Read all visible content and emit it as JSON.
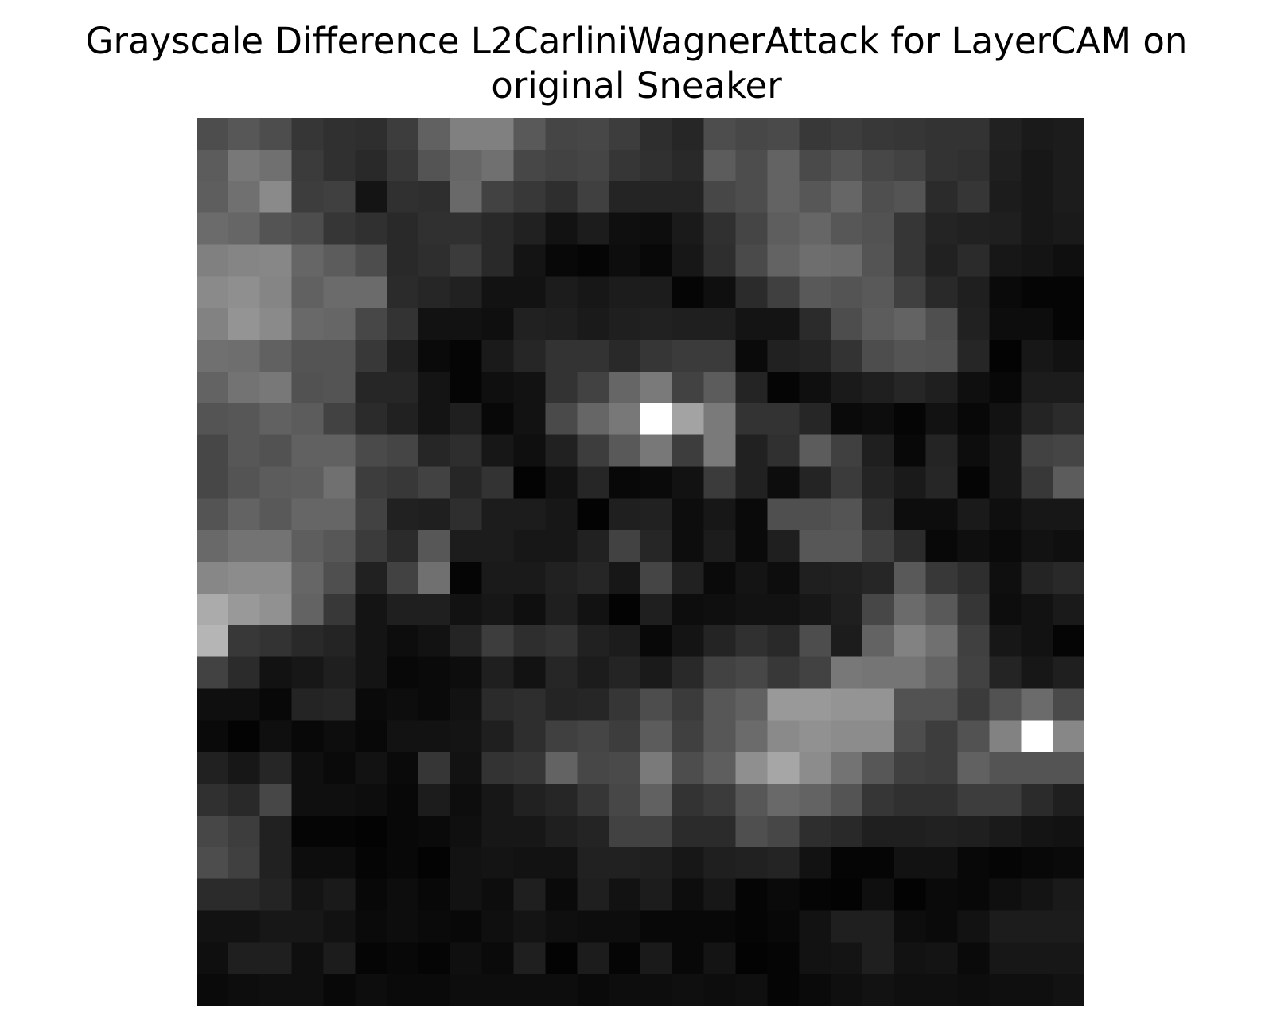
{
  "chart_data": {
    "type": "heatmap",
    "title_lines": [
      "Grayscale Difference L2CarliniWagnerAttack for LayerCAM on",
      "original Sneaker"
    ],
    "colormap": "gray",
    "axes_visible": false,
    "grid": false,
    "rows": 28,
    "cols": 28,
    "vmin": 0,
    "vmax": 1,
    "values": [
      [
        0.3,
        0.34,
        0.3,
        0.21,
        0.19,
        0.18,
        0.24,
        0.38,
        0.5,
        0.5,
        0.35,
        0.27,
        0.28,
        0.24,
        0.18,
        0.15,
        0.3,
        0.28,
        0.29,
        0.22,
        0.24,
        0.22,
        0.21,
        0.2,
        0.2,
        0.13,
        0.1,
        0.11
      ],
      [
        0.36,
        0.47,
        0.44,
        0.23,
        0.19,
        0.16,
        0.22,
        0.33,
        0.4,
        0.44,
        0.28,
        0.26,
        0.27,
        0.21,
        0.19,
        0.16,
        0.36,
        0.3,
        0.39,
        0.29,
        0.33,
        0.28,
        0.26,
        0.2,
        0.19,
        0.12,
        0.09,
        0.11
      ],
      [
        0.37,
        0.44,
        0.54,
        0.24,
        0.25,
        0.08,
        0.19,
        0.18,
        0.41,
        0.26,
        0.22,
        0.18,
        0.25,
        0.14,
        0.14,
        0.14,
        0.28,
        0.3,
        0.39,
        0.34,
        0.4,
        0.31,
        0.33,
        0.17,
        0.21,
        0.11,
        0.09,
        0.11
      ],
      [
        0.42,
        0.4,
        0.33,
        0.3,
        0.21,
        0.19,
        0.16,
        0.19,
        0.19,
        0.16,
        0.13,
        0.07,
        0.11,
        0.06,
        0.05,
        0.1,
        0.19,
        0.27,
        0.37,
        0.4,
        0.34,
        0.32,
        0.21,
        0.14,
        0.13,
        0.12,
        0.09,
        0.1
      ],
      [
        0.5,
        0.52,
        0.53,
        0.4,
        0.36,
        0.3,
        0.16,
        0.18,
        0.23,
        0.16,
        0.08,
        0.03,
        0.02,
        0.05,
        0.03,
        0.09,
        0.18,
        0.29,
        0.39,
        0.43,
        0.42,
        0.33,
        0.21,
        0.13,
        0.17,
        0.09,
        0.08,
        0.06
      ],
      [
        0.54,
        0.56,
        0.52,
        0.38,
        0.42,
        0.42,
        0.17,
        0.15,
        0.13,
        0.07,
        0.07,
        0.11,
        0.09,
        0.11,
        0.11,
        0.02,
        0.06,
        0.17,
        0.25,
        0.35,
        0.33,
        0.35,
        0.25,
        0.16,
        0.12,
        0.04,
        0.02,
        0.02
      ],
      [
        0.51,
        0.58,
        0.54,
        0.41,
        0.4,
        0.28,
        0.2,
        0.07,
        0.07,
        0.06,
        0.13,
        0.12,
        0.1,
        0.12,
        0.13,
        0.12,
        0.12,
        0.08,
        0.08,
        0.17,
        0.3,
        0.36,
        0.39,
        0.31,
        0.13,
        0.05,
        0.05,
        0.02
      ],
      [
        0.44,
        0.43,
        0.38,
        0.33,
        0.33,
        0.22,
        0.13,
        0.04,
        0.02,
        0.1,
        0.15,
        0.2,
        0.2,
        0.16,
        0.21,
        0.23,
        0.23,
        0.04,
        0.13,
        0.14,
        0.2,
        0.3,
        0.33,
        0.32,
        0.15,
        0.01,
        0.09,
        0.07
      ],
      [
        0.39,
        0.45,
        0.47,
        0.32,
        0.33,
        0.15,
        0.15,
        0.08,
        0.02,
        0.06,
        0.07,
        0.2,
        0.26,
        0.4,
        0.48,
        0.26,
        0.36,
        0.14,
        0.02,
        0.06,
        0.1,
        0.12,
        0.15,
        0.12,
        0.06,
        0.03,
        0.11,
        0.11
      ],
      [
        0.33,
        0.34,
        0.38,
        0.36,
        0.26,
        0.17,
        0.13,
        0.08,
        0.12,
        0.03,
        0.07,
        0.29,
        0.4,
        0.47,
        1.0,
        0.64,
        0.48,
        0.2,
        0.2,
        0.15,
        0.04,
        0.05,
        0.02,
        0.07,
        0.03,
        0.07,
        0.14,
        0.17
      ],
      [
        0.28,
        0.34,
        0.32,
        0.38,
        0.38,
        0.29,
        0.27,
        0.15,
        0.18,
        0.09,
        0.06,
        0.13,
        0.24,
        0.35,
        0.47,
        0.24,
        0.48,
        0.13,
        0.19,
        0.36,
        0.25,
        0.12,
        0.03,
        0.14,
        0.05,
        0.09,
        0.26,
        0.27
      ],
      [
        0.28,
        0.33,
        0.36,
        0.37,
        0.44,
        0.24,
        0.22,
        0.26,
        0.15,
        0.2,
        0.01,
        0.07,
        0.15,
        0.03,
        0.04,
        0.07,
        0.23,
        0.13,
        0.05,
        0.14,
        0.23,
        0.14,
        0.1,
        0.15,
        0.02,
        0.09,
        0.22,
        0.36
      ],
      [
        0.33,
        0.39,
        0.35,
        0.4,
        0.4,
        0.26,
        0.13,
        0.12,
        0.18,
        0.11,
        0.11,
        0.09,
        0.01,
        0.12,
        0.13,
        0.05,
        0.09,
        0.04,
        0.31,
        0.31,
        0.33,
        0.18,
        0.05,
        0.05,
        0.1,
        0.06,
        0.09,
        0.09
      ],
      [
        0.41,
        0.45,
        0.45,
        0.37,
        0.34,
        0.23,
        0.17,
        0.34,
        0.11,
        0.11,
        0.09,
        0.09,
        0.13,
        0.26,
        0.15,
        0.05,
        0.11,
        0.04,
        0.12,
        0.34,
        0.34,
        0.25,
        0.17,
        0.03,
        0.06,
        0.04,
        0.07,
        0.06
      ],
      [
        0.53,
        0.55,
        0.55,
        0.4,
        0.31,
        0.13,
        0.26,
        0.44,
        0.02,
        0.1,
        0.1,
        0.13,
        0.15,
        0.09,
        0.27,
        0.13,
        0.04,
        0.08,
        0.05,
        0.12,
        0.13,
        0.15,
        0.35,
        0.22,
        0.18,
        0.06,
        0.14,
        0.16
      ],
      [
        0.67,
        0.6,
        0.57,
        0.39,
        0.22,
        0.08,
        0.12,
        0.12,
        0.07,
        0.09,
        0.06,
        0.12,
        0.07,
        0.01,
        0.12,
        0.05,
        0.06,
        0.07,
        0.07,
        0.09,
        0.12,
        0.28,
        0.42,
        0.35,
        0.21,
        0.05,
        0.07,
        0.1
      ],
      [
        0.71,
        0.22,
        0.2,
        0.16,
        0.14,
        0.08,
        0.05,
        0.07,
        0.14,
        0.24,
        0.18,
        0.2,
        0.13,
        0.11,
        0.03,
        0.08,
        0.14,
        0.19,
        0.16,
        0.3,
        0.11,
        0.39,
        0.51,
        0.44,
        0.25,
        0.09,
        0.07,
        0.02
      ],
      [
        0.26,
        0.17,
        0.07,
        0.09,
        0.12,
        0.08,
        0.03,
        0.04,
        0.05,
        0.12,
        0.07,
        0.15,
        0.11,
        0.14,
        0.1,
        0.16,
        0.26,
        0.28,
        0.22,
        0.26,
        0.47,
        0.46,
        0.46,
        0.39,
        0.26,
        0.14,
        0.09,
        0.12
      ],
      [
        0.06,
        0.06,
        0.03,
        0.14,
        0.15,
        0.04,
        0.05,
        0.04,
        0.07,
        0.17,
        0.18,
        0.14,
        0.15,
        0.21,
        0.3,
        0.23,
        0.34,
        0.38,
        0.6,
        0.6,
        0.58,
        0.58,
        0.32,
        0.32,
        0.23,
        0.32,
        0.42,
        0.29
      ],
      [
        0.04,
        0.01,
        0.06,
        0.03,
        0.05,
        0.03,
        0.07,
        0.07,
        0.08,
        0.12,
        0.18,
        0.25,
        0.27,
        0.24,
        0.36,
        0.25,
        0.34,
        0.42,
        0.54,
        0.57,
        0.55,
        0.55,
        0.3,
        0.24,
        0.32,
        0.51,
        1.0,
        0.53
      ],
      [
        0.13,
        0.09,
        0.15,
        0.06,
        0.04,
        0.07,
        0.04,
        0.21,
        0.07,
        0.2,
        0.21,
        0.39,
        0.28,
        0.29,
        0.48,
        0.3,
        0.37,
        0.56,
        0.65,
        0.55,
        0.45,
        0.34,
        0.25,
        0.24,
        0.38,
        0.33,
        0.33,
        0.33
      ],
      [
        0.19,
        0.16,
        0.28,
        0.06,
        0.06,
        0.05,
        0.03,
        0.11,
        0.05,
        0.09,
        0.13,
        0.15,
        0.21,
        0.28,
        0.38,
        0.2,
        0.23,
        0.34,
        0.41,
        0.39,
        0.33,
        0.21,
        0.19,
        0.19,
        0.24,
        0.24,
        0.17,
        0.12
      ],
      [
        0.28,
        0.24,
        0.13,
        0.02,
        0.02,
        0.01,
        0.03,
        0.04,
        0.06,
        0.09,
        0.09,
        0.12,
        0.14,
        0.26,
        0.26,
        0.17,
        0.17,
        0.31,
        0.28,
        0.18,
        0.16,
        0.12,
        0.12,
        0.13,
        0.12,
        0.1,
        0.08,
        0.07
      ],
      [
        0.3,
        0.25,
        0.13,
        0.05,
        0.05,
        0.02,
        0.03,
        0.01,
        0.07,
        0.08,
        0.07,
        0.07,
        0.13,
        0.13,
        0.12,
        0.09,
        0.12,
        0.13,
        0.14,
        0.07,
        0.02,
        0.02,
        0.07,
        0.07,
        0.03,
        0.02,
        0.03,
        0.04
      ],
      [
        0.17,
        0.17,
        0.14,
        0.08,
        0.1,
        0.03,
        0.05,
        0.03,
        0.07,
        0.05,
        0.12,
        0.04,
        0.12,
        0.07,
        0.11,
        0.05,
        0.09,
        0.02,
        0.04,
        0.02,
        0.01,
        0.06,
        0.01,
        0.04,
        0.03,
        0.06,
        0.08,
        0.1
      ],
      [
        0.07,
        0.07,
        0.09,
        0.09,
        0.07,
        0.04,
        0.05,
        0.04,
        0.03,
        0.06,
        0.08,
        0.06,
        0.05,
        0.05,
        0.03,
        0.03,
        0.03,
        0.02,
        0.03,
        0.07,
        0.12,
        0.12,
        0.05,
        0.04,
        0.07,
        0.11,
        0.11,
        0.11
      ],
      [
        0.06,
        0.12,
        0.12,
        0.06,
        0.11,
        0.02,
        0.03,
        0.02,
        0.06,
        0.04,
        0.12,
        0.01,
        0.11,
        0.02,
        0.1,
        0.03,
        0.08,
        0.01,
        0.02,
        0.07,
        0.08,
        0.12,
        0.07,
        0.08,
        0.04,
        0.09,
        0.09,
        0.09
      ],
      [
        0.04,
        0.05,
        0.06,
        0.06,
        0.03,
        0.05,
        0.04,
        0.04,
        0.05,
        0.05,
        0.05,
        0.05,
        0.04,
        0.05,
        0.05,
        0.06,
        0.05,
        0.06,
        0.02,
        0.04,
        0.06,
        0.07,
        0.06,
        0.06,
        0.05,
        0.06,
        0.06,
        0.07
      ]
    ]
  }
}
